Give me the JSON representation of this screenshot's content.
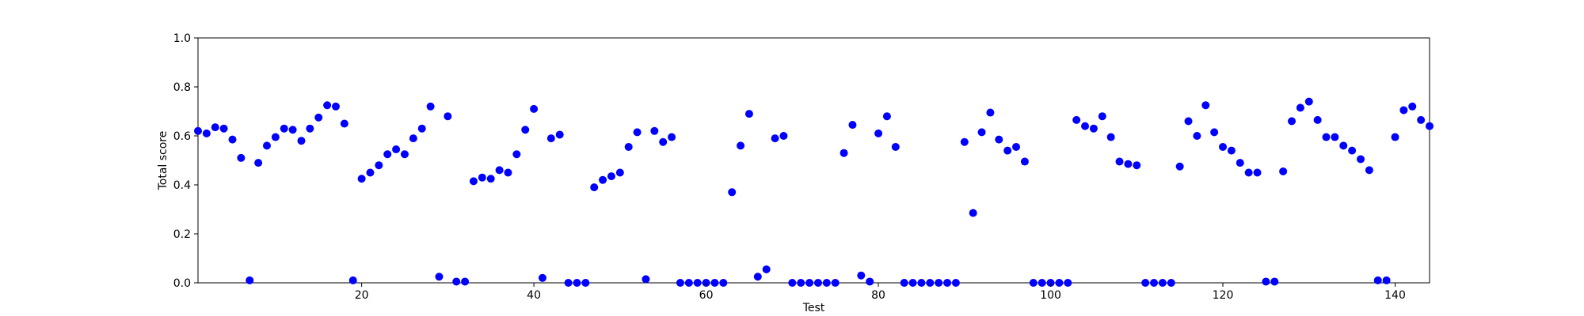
{
  "chart_data": {
    "type": "scatter",
    "title": "",
    "xlabel": "Test",
    "ylabel": "Total score",
    "xlim": [
      1,
      144
    ],
    "ylim": [
      0.0,
      1.0
    ],
    "xticks": [
      20,
      40,
      60,
      80,
      100,
      120,
      140
    ],
    "xtick_labels": [
      "20",
      "40",
      "60",
      "80",
      "100",
      "120",
      "140"
    ],
    "yticks": [
      0.0,
      0.2,
      0.4,
      0.6,
      0.8,
      1.0
    ],
    "ytick_labels": [
      "0.0",
      "0.2",
      "0.4",
      "0.6",
      "0.8",
      "1.0"
    ],
    "grid": false,
    "marker_color": "#0000ff",
    "x": [
      1,
      2,
      3,
      4,
      5,
      6,
      7,
      8,
      9,
      10,
      11,
      12,
      13,
      14,
      15,
      16,
      17,
      18,
      19,
      20,
      21,
      22,
      23,
      24,
      25,
      26,
      27,
      28,
      29,
      30,
      31,
      32,
      33,
      34,
      35,
      36,
      37,
      38,
      39,
      40,
      41,
      42,
      43,
      44,
      45,
      46,
      47,
      48,
      49,
      50,
      51,
      52,
      53,
      54,
      55,
      56,
      57,
      58,
      59,
      60,
      61,
      62,
      63,
      64,
      65,
      66,
      67,
      68,
      69,
      70,
      71,
      72,
      73,
      74,
      75,
      76,
      77,
      78,
      79,
      80,
      81,
      82,
      83,
      84,
      85,
      86,
      87,
      88,
      89,
      90,
      91,
      92,
      93,
      94,
      95,
      96,
      97,
      98,
      99,
      100,
      101,
      102,
      103,
      104,
      105,
      106,
      107,
      108,
      109,
      110,
      111,
      112,
      113,
      114,
      115,
      116,
      117,
      118,
      119,
      120,
      121,
      122,
      123,
      124,
      125,
      126,
      127,
      128,
      129,
      130,
      131,
      132,
      133,
      134,
      135,
      136,
      137,
      138,
      139,
      140,
      141,
      142,
      143,
      144
    ],
    "y": [
      0.62,
      0.61,
      0.635,
      0.63,
      0.585,
      0.51,
      0.01,
      0.49,
      0.56,
      0.595,
      0.63,
      0.625,
      0.58,
      0.63,
      0.675,
      0.725,
      0.72,
      0.65,
      0.01,
      0.425,
      0.45,
      0.48,
      0.525,
      0.545,
      0.525,
      0.59,
      0.63,
      0.72,
      0.025,
      0.68,
      0.005,
      0.005,
      0.415,
      0.43,
      0.425,
      0.46,
      0.45,
      0.525,
      0.625,
      0.71,
      0.02,
      0.59,
      0.605,
      0.0,
      0.0,
      0.0,
      0.39,
      0.42,
      0.435,
      0.45,
      0.555,
      0.615,
      0.015,
      0.62,
      0.575,
      0.595,
      0.0,
      0.0,
      0.0,
      0.0,
      0.0,
      0.0,
      0.37,
      0.56,
      0.69,
      0.025,
      0.055,
      0.59,
      0.6,
      0.0,
      0.0,
      0.0,
      0.0,
      0.0,
      0.0,
      0.53,
      0.645,
      0.03,
      0.005,
      0.61,
      0.68,
      0.555,
      0.0,
      0.0,
      0.0,
      0.0,
      0.0,
      0.0,
      0.0,
      0.575,
      0.285,
      0.615,
      0.695,
      0.585,
      0.54,
      0.555,
      0.495,
      0.0,
      0.0,
      0.0,
      0.0,
      0.0,
      0.665,
      0.64,
      0.63,
      0.68,
      0.595,
      0.495,
      0.485,
      0.48,
      0.0,
      0.0,
      0.0,
      0.0,
      0.475,
      0.66,
      0.6,
      0.725,
      0.615,
      0.555,
      0.54,
      0.49,
      0.45,
      0.45,
      0.005,
      0.005,
      0.455,
      0.66,
      0.715,
      0.74,
      0.665,
      0.595,
      0.595,
      0.56,
      0.54,
      0.505,
      0.46,
      0.01,
      0.01,
      0.595,
      0.705,
      0.72,
      0.665,
      0.64
    ]
  }
}
